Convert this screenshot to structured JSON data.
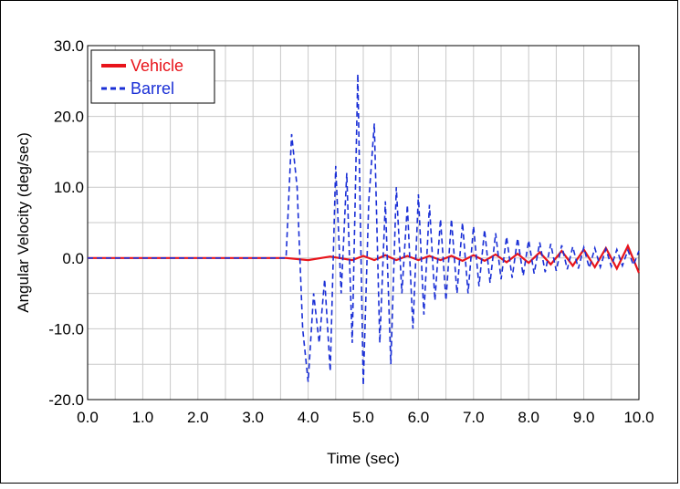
{
  "chart_data": {
    "type": "line",
    "title": "",
    "xlabel": "Time (sec)",
    "ylabel": "Angular Velocity (deg/sec)",
    "xlim": [
      0,
      10
    ],
    "ylim": [
      -20,
      30
    ],
    "xticks": [
      0,
      1,
      2,
      3,
      4,
      5,
      6,
      7,
      8,
      9,
      10
    ],
    "yticks": [
      -20,
      -10,
      0,
      10,
      20,
      30
    ],
    "xtick_labels": [
      "0.0",
      "1.0",
      "2.0",
      "3.0",
      "4.0",
      "5.0",
      "6.0",
      "7.0",
      "8.0",
      "9.0",
      "10.0"
    ],
    "ytick_labels": [
      "-20.0",
      "-10.0",
      "0.0",
      "10.0",
      "20.0",
      "30.0"
    ],
    "grid": true,
    "legend_position": "top-left",
    "series": [
      {
        "name": "Vehicle",
        "color": "#e8141b",
        "style": "solid",
        "x": [
          0,
          3.6,
          4.0,
          4.4,
          4.8,
          5.0,
          5.2,
          5.4,
          5.6,
          5.8,
          6.0,
          6.2,
          6.4,
          6.6,
          6.8,
          7.0,
          7.2,
          7.4,
          7.6,
          7.8,
          8.0,
          8.2,
          8.4,
          8.6,
          8.8,
          9.0,
          9.2,
          9.4,
          9.6,
          9.8,
          10.0
        ],
        "y": [
          0,
          0,
          -0.3,
          0.2,
          -0.3,
          0.3,
          -0.3,
          0.4,
          -0.3,
          0.3,
          -0.3,
          0.3,
          -0.3,
          0.3,
          -0.4,
          0.4,
          -0.4,
          0.5,
          -0.6,
          0.6,
          -0.7,
          0.8,
          -0.9,
          1.0,
          -1.1,
          1.2,
          -1.3,
          1.4,
          -1.5,
          1.7,
          -2.1
        ]
      },
      {
        "name": "Barrel",
        "color": "#1a2fd6",
        "style": "dashed",
        "x": [
          0,
          3.6,
          3.7,
          3.8,
          3.9,
          4.0,
          4.1,
          4.2,
          4.3,
          4.4,
          4.5,
          4.6,
          4.7,
          4.8,
          4.9,
          5.0,
          5.1,
          5.2,
          5.3,
          5.4,
          5.5,
          5.6,
          5.7,
          5.8,
          5.9,
          6.0,
          6.1,
          6.2,
          6.3,
          6.4,
          6.5,
          6.6,
          6.7,
          6.8,
          6.9,
          7.0,
          7.1,
          7.2,
          7.3,
          7.4,
          7.5,
          7.6,
          7.7,
          7.8,
          7.9,
          8.0,
          8.1,
          8.2,
          8.3,
          8.4,
          8.5,
          8.6,
          8.7,
          8.8,
          8.9,
          9.0,
          9.1,
          9.2,
          9.3,
          9.4,
          9.5,
          9.6,
          9.7,
          9.8,
          9.9,
          10.0
        ],
        "y": [
          0,
          0,
          17.5,
          10,
          -10,
          -17.5,
          -5,
          -12,
          -3,
          -16,
          13,
          -5,
          12,
          -12,
          26,
          -18,
          8,
          19,
          -12,
          8,
          -15,
          10,
          -5,
          7.5,
          -10,
          9,
          -8,
          7.5,
          -6,
          5.5,
          -6,
          5.5,
          -5,
          5,
          -5,
          4.5,
          -4,
          4,
          -3.5,
          3.5,
          -3,
          3,
          -2.8,
          2.8,
          -2.5,
          2.5,
          -2.2,
          2.2,
          -2,
          2,
          -1.8,
          1.8,
          -1.6,
          1.6,
          -1.5,
          1.5,
          -1.4,
          1.4,
          -1.3,
          1.3,
          -1.2,
          1.2,
          -1.1,
          1.1,
          -1,
          1
        ]
      }
    ]
  }
}
